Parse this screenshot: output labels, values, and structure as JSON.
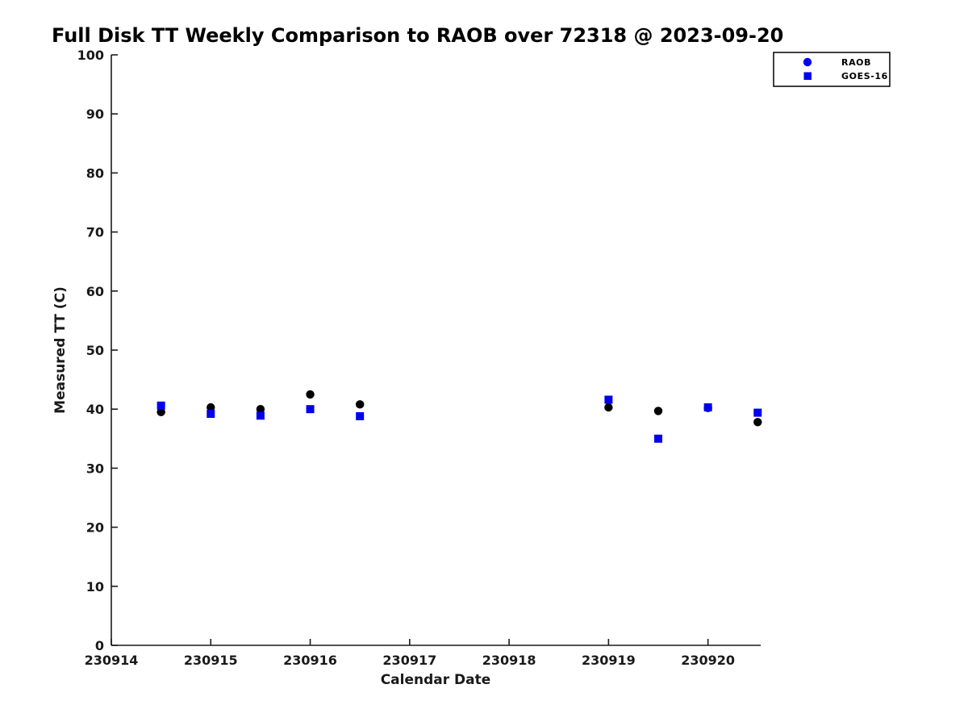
{
  "page": {
    "background": "#ffffff"
  },
  "chart_data": {
    "type": "scatter",
    "title": "Full Disk TT Weekly Comparison to RAOB over 72318 @ 2023-09-20",
    "xlabel": "Calendar Date",
    "ylabel": "Measured TT (C)",
    "xlim": [
      230914,
      230920.53
    ],
    "ylim": [
      0,
      100
    ],
    "x_ticks": [
      230914,
      230915,
      230916,
      230917,
      230918,
      230919,
      230920
    ],
    "y_ticks": [
      0,
      10,
      20,
      30,
      40,
      50,
      60,
      70,
      80,
      90,
      100
    ],
    "grid": false,
    "axis_color": "#1a1a1a",
    "legend": {
      "position": "top-right",
      "entries": [
        "RAOB",
        "GOES-16"
      ]
    },
    "series": [
      {
        "name": "RAOB",
        "marker": "circle",
        "marker_color": "#000000",
        "legend_marker_color": "#0000ee",
        "legend_marker_edge": "#000066",
        "points": [
          [
            230914.5,
            39.5
          ],
          [
            230915.0,
            40.3
          ],
          [
            230915.5,
            40.0
          ],
          [
            230916.0,
            42.5
          ],
          [
            230916.5,
            40.8
          ],
          [
            230919.0,
            40.3
          ],
          [
            230919.5,
            39.7
          ],
          [
            230920.0,
            40.2
          ],
          [
            230920.5,
            37.8
          ]
        ]
      },
      {
        "name": "GOES-16",
        "marker": "square",
        "marker_color": "#0000ee",
        "points": [
          [
            230914.5,
            40.6
          ],
          [
            230915.0,
            39.2
          ],
          [
            230915.5,
            38.9
          ],
          [
            230916.0,
            40.0
          ],
          [
            230916.5,
            38.8
          ],
          [
            230919.0,
            41.6
          ],
          [
            230919.5,
            35.0
          ],
          [
            230920.0,
            40.3
          ],
          [
            230920.5,
            39.4
          ]
        ]
      }
    ]
  }
}
